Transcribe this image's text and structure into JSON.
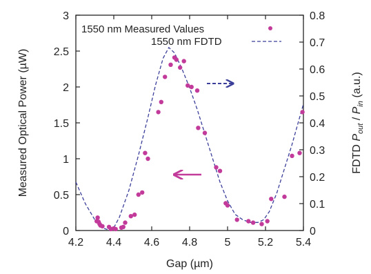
{
  "chart_data": {
    "type": "scatter",
    "xlabel": "Gap (µm)",
    "ylabel_left": "Measured Optical Power (µW)",
    "ylabel_right_prefix": "FDTD ",
    "ylabel_right_pout": "P",
    "ylabel_right_pout_sub": "out",
    "ylabel_right_sep": " / ",
    "ylabel_right_pin": "P",
    "ylabel_right_pin_sub": "in",
    "ylabel_right_suffix": " (a.u.)",
    "xlim": [
      4.2,
      5.4
    ],
    "ylim_left": [
      0,
      3
    ],
    "ylim_right": [
      0,
      0.8
    ],
    "x_ticks": [
      "4.2",
      "4.4",
      "4.6",
      "4.8",
      "5",
      "5.2",
      "5.4"
    ],
    "x_tick_values": [
      4.2,
      4.4,
      4.6,
      4.8,
      5.0,
      5.2,
      5.4
    ],
    "y_left_ticks": [
      "0",
      "0.5",
      "1",
      "1.5",
      "2",
      "2.5",
      "3"
    ],
    "y_left_tick_values": [
      0,
      0.5,
      1,
      1.5,
      2,
      2.5,
      3
    ],
    "y_right_ticks": [
      "0",
      "0.1",
      "0.2",
      "0.3",
      "0.4",
      "0.5",
      "0.6",
      "0.7",
      "0.8"
    ],
    "y_right_tick_values": [
      0,
      0.1,
      0.2,
      0.3,
      0.4,
      0.5,
      0.6,
      0.7,
      0.8
    ],
    "legend": [
      {
        "label": "1550 nm Measured Values",
        "style": "points",
        "color": "#c23a9a"
      },
      {
        "label": "1550 nm FDTD",
        "style": "dashed-line",
        "color": "#3b3f9a"
      }
    ],
    "series": [
      {
        "name": "1550 nm Measured Values",
        "axis": "left",
        "x": [
          4.31,
          4.315,
          4.32,
          4.325,
          4.33,
          4.34,
          4.375,
          4.385,
          4.4,
          4.41,
          4.44,
          4.45,
          4.46,
          4.49,
          4.51,
          4.53,
          4.55,
          4.565,
          4.58,
          4.635,
          4.65,
          4.67,
          4.7,
          4.72,
          4.73,
          4.75,
          4.77,
          4.79,
          4.81,
          4.84,
          4.845,
          4.88,
          4.94,
          4.96,
          4.99,
          5.0,
          5.05,
          5.11,
          5.135,
          5.18,
          5.21,
          5.23,
          5.3,
          5.34,
          5.38,
          5.395
        ],
        "y": [
          0.13,
          0.18,
          0.12,
          0.09,
          0.07,
          0.06,
          0.05,
          0.02,
          0.03,
          0.02,
          0.04,
          0.05,
          0.11,
          0.2,
          0.22,
          0.5,
          0.53,
          1.08,
          1.0,
          1.65,
          1.79,
          2.14,
          2.31,
          2.41,
          2.38,
          2.27,
          2.36,
          2.02,
          2.0,
          1.95,
          1.43,
          1.36,
          0.88,
          0.83,
          0.38,
          0.35,
          0.15,
          0.13,
          0.11,
          0.09,
          0.13,
          0.44,
          0.47,
          1.04,
          1.08,
          1.65
        ],
        "color": "#c23a9a"
      },
      {
        "name": "1550 nm FDTD",
        "axis": "right",
        "x": [
          4.2,
          4.25,
          4.3,
          4.34,
          4.38,
          4.4,
          4.43,
          4.48,
          4.53,
          4.58,
          4.62,
          4.66,
          4.69,
          4.72,
          4.76,
          4.8,
          4.84,
          4.88,
          4.92,
          4.96,
          5.0,
          5.04,
          5.08,
          5.12,
          5.16,
          5.19,
          5.22,
          5.26,
          5.3,
          5.34,
          5.38,
          5.4
        ],
        "y": [
          0.18,
          0.1,
          0.04,
          0.01,
          0.0,
          0.01,
          0.05,
          0.15,
          0.28,
          0.42,
          0.54,
          0.64,
          0.68,
          0.66,
          0.6,
          0.53,
          0.45,
          0.36,
          0.27,
          0.18,
          0.11,
          0.06,
          0.04,
          0.03,
          0.03,
          0.04,
          0.07,
          0.14,
          0.23,
          0.32,
          0.42,
          0.47
        ],
        "color": "#3b3f9a"
      }
    ],
    "annotations": [
      {
        "type": "arrow",
        "direction": "right",
        "style": "dashed",
        "color": "#3b3f9a",
        "indicates": "right axis"
      },
      {
        "type": "arrow",
        "direction": "left",
        "style": "solid",
        "color": "#c23a9a",
        "indicates": "left axis"
      }
    ],
    "grid": false,
    "legend_position": "top-left"
  }
}
